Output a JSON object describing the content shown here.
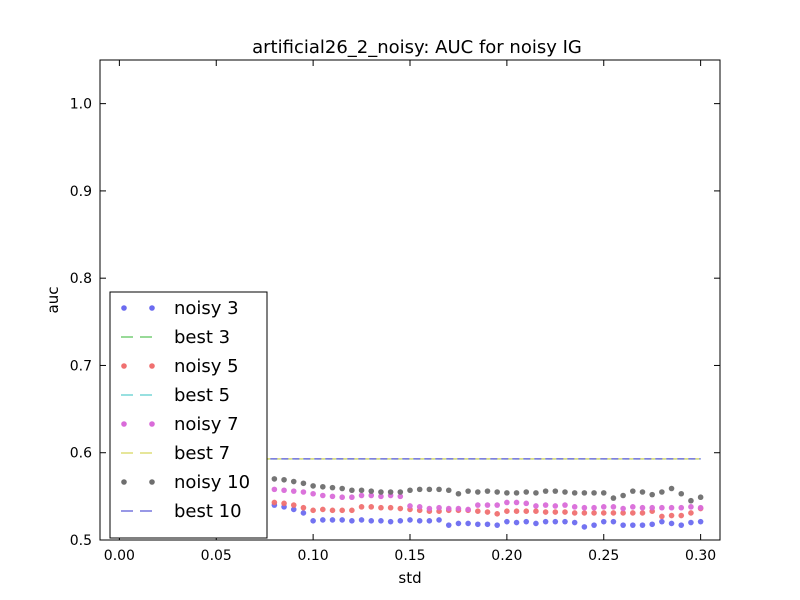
{
  "chart_data": {
    "type": "scatter",
    "title": "artificial26_2_noisy: AUC for noisy IG",
    "xlabel": "std",
    "ylabel": "auc",
    "xlim": [
      -0.01,
      0.31
    ],
    "ylim": [
      0.5,
      1.05
    ],
    "xticks": [
      0.0,
      0.05,
      0.1,
      0.15,
      0.2,
      0.25,
      0.3
    ],
    "xtick_labels": [
      "0.00",
      "0.05",
      "0.10",
      "0.15",
      "0.20",
      "0.25",
      "0.30"
    ],
    "yticks": [
      0.5,
      0.6,
      0.7,
      0.8,
      0.9,
      1.0
    ],
    "ytick_labels": [
      "0.5",
      "0.6",
      "0.7",
      "0.8",
      "0.9",
      "1.0"
    ],
    "grid": false,
    "legend_position": "lower-left",
    "x": [
      0.0,
      0.005,
      0.01,
      0.015,
      0.02,
      0.025,
      0.03,
      0.035,
      0.04,
      0.045,
      0.05,
      0.055,
      0.06,
      0.065,
      0.07,
      0.075,
      0.08,
      0.085,
      0.09,
      0.095,
      0.1,
      0.105,
      0.11,
      0.115,
      0.12,
      0.125,
      0.13,
      0.135,
      0.14,
      0.145,
      0.15,
      0.155,
      0.16,
      0.165,
      0.17,
      0.175,
      0.18,
      0.185,
      0.19,
      0.195,
      0.2,
      0.205,
      0.21,
      0.215,
      0.22,
      0.225,
      0.23,
      0.235,
      0.24,
      0.245,
      0.25,
      0.255,
      0.26,
      0.265,
      0.27,
      0.275,
      0.28,
      0.285,
      0.29,
      0.295,
      0.3
    ],
    "series": [
      {
        "name": "noisy 3",
        "style": "dots",
        "color": "#6b6bf0",
        "values": [
          0.555,
          0.555,
          0.554,
          0.553,
          0.552,
          0.551,
          0.55,
          0.549,
          0.548,
          0.547,
          0.546,
          0.545,
          0.544,
          0.543,
          0.542,
          0.541,
          0.54,
          0.538,
          0.535,
          0.531,
          0.522,
          0.523,
          0.523,
          0.523,
          0.522,
          0.523,
          0.522,
          0.522,
          0.521,
          0.522,
          0.523,
          0.522,
          0.522,
          0.523,
          0.517,
          0.519,
          0.519,
          0.518,
          0.518,
          0.517,
          0.521,
          0.52,
          0.521,
          0.519,
          0.521,
          0.521,
          0.521,
          0.52,
          0.515,
          0.517,
          0.521,
          0.521,
          0.517,
          0.517,
          0.517,
          0.518,
          0.521,
          0.519,
          0.517,
          0.52,
          0.521
        ]
      },
      {
        "name": "best 3",
        "style": "dashed",
        "color": "#7fd17f",
        "values": [
          0.593,
          0.593,
          0.593,
          0.593,
          0.593,
          0.593,
          0.593,
          0.593,
          0.593,
          0.593,
          0.593,
          0.593,
          0.593,
          0.593,
          0.593,
          0.593,
          0.593,
          0.593,
          0.593,
          0.593,
          0.593,
          0.593,
          0.593,
          0.593,
          0.593,
          0.593,
          0.593,
          0.593,
          0.593,
          0.593,
          0.593,
          0.593,
          0.593,
          0.593,
          0.593,
          0.593,
          0.593,
          0.593,
          0.593,
          0.593,
          0.593,
          0.593,
          0.593,
          0.593,
          0.593,
          0.593,
          0.593,
          0.593,
          0.593,
          0.593,
          0.593,
          0.593,
          0.593,
          0.593,
          0.593,
          0.593,
          0.593,
          0.593,
          0.593,
          0.593,
          0.593
        ]
      },
      {
        "name": "noisy 5",
        "style": "dots",
        "color": "#f07070",
        "values": [
          0.556,
          0.556,
          0.555,
          0.554,
          0.553,
          0.552,
          0.551,
          0.55,
          0.549,
          0.548,
          0.547,
          0.547,
          0.546,
          0.545,
          0.545,
          0.544,
          0.543,
          0.542,
          0.54,
          0.537,
          0.534,
          0.535,
          0.534,
          0.534,
          0.534,
          0.538,
          0.538,
          0.537,
          0.537,
          0.536,
          0.535,
          0.534,
          0.533,
          0.533,
          0.534,
          0.534,
          0.534,
          0.533,
          0.532,
          0.53,
          0.533,
          0.533,
          0.533,
          0.533,
          0.532,
          0.532,
          0.532,
          0.531,
          0.531,
          0.531,
          0.531,
          0.531,
          0.531,
          0.531,
          0.531,
          0.533,
          0.527,
          0.528,
          0.528,
          0.531,
          0.536
        ]
      },
      {
        "name": "best 5",
        "style": "dashed",
        "color": "#7fd8d8",
        "values": [
          0.593,
          0.593,
          0.593,
          0.593,
          0.593,
          0.593,
          0.593,
          0.593,
          0.593,
          0.593,
          0.593,
          0.593,
          0.593,
          0.593,
          0.593,
          0.593,
          0.593,
          0.593,
          0.593,
          0.593,
          0.593,
          0.593,
          0.593,
          0.593,
          0.593,
          0.593,
          0.593,
          0.593,
          0.593,
          0.593,
          0.593,
          0.593,
          0.593,
          0.593,
          0.593,
          0.593,
          0.593,
          0.593,
          0.593,
          0.593,
          0.593,
          0.593,
          0.593,
          0.593,
          0.593,
          0.593,
          0.593,
          0.593,
          0.593,
          0.593,
          0.593,
          0.593,
          0.593,
          0.593,
          0.593,
          0.593,
          0.593,
          0.593,
          0.593,
          0.593,
          0.593
        ]
      },
      {
        "name": "noisy 7",
        "style": "dots",
        "color": "#d96bd9",
        "values": [
          0.566,
          0.566,
          0.565,
          0.565,
          0.564,
          0.564,
          0.563,
          0.563,
          0.562,
          0.562,
          0.561,
          0.561,
          0.56,
          0.56,
          0.559,
          0.559,
          0.558,
          0.557,
          0.556,
          0.555,
          0.553,
          0.551,
          0.55,
          0.549,
          0.549,
          0.551,
          0.551,
          0.55,
          0.551,
          0.55,
          0.539,
          0.538,
          0.536,
          0.537,
          0.536,
          0.536,
          0.535,
          0.54,
          0.54,
          0.54,
          0.543,
          0.543,
          0.542,
          0.539,
          0.54,
          0.539,
          0.54,
          0.538,
          0.537,
          0.537,
          0.538,
          0.538,
          0.536,
          0.538,
          0.537,
          0.537,
          0.537,
          0.537,
          0.537,
          0.538,
          0.537
        ]
      },
      {
        "name": "best 7",
        "style": "dashed",
        "color": "#e0e080",
        "values": [
          0.593,
          0.593,
          0.593,
          0.593,
          0.593,
          0.593,
          0.593,
          0.593,
          0.593,
          0.593,
          0.593,
          0.593,
          0.593,
          0.593,
          0.593,
          0.593,
          0.593,
          0.593,
          0.593,
          0.593,
          0.593,
          0.593,
          0.593,
          0.593,
          0.593,
          0.593,
          0.593,
          0.593,
          0.593,
          0.593,
          0.593,
          0.593,
          0.593,
          0.593,
          0.593,
          0.593,
          0.593,
          0.593,
          0.593,
          0.593,
          0.593,
          0.593,
          0.593,
          0.593,
          0.593,
          0.593,
          0.593,
          0.593,
          0.593,
          0.593,
          0.593,
          0.593,
          0.593,
          0.593,
          0.593,
          0.593,
          0.593,
          0.593,
          0.593,
          0.593,
          0.593
        ]
      },
      {
        "name": "noisy 10",
        "style": "dots",
        "color": "#6e6e6e",
        "values": [
          0.578,
          0.578,
          0.577,
          0.577,
          0.576,
          0.576,
          0.575,
          0.575,
          0.574,
          0.574,
          0.573,
          0.573,
          0.572,
          0.572,
          0.571,
          0.571,
          0.57,
          0.569,
          0.567,
          0.565,
          0.562,
          0.561,
          0.56,
          0.559,
          0.557,
          0.557,
          0.556,
          0.555,
          0.555,
          0.555,
          0.557,
          0.558,
          0.558,
          0.558,
          0.557,
          0.553,
          0.556,
          0.555,
          0.556,
          0.555,
          0.554,
          0.554,
          0.555,
          0.554,
          0.556,
          0.556,
          0.555,
          0.554,
          0.554,
          0.554,
          0.554,
          0.548,
          0.551,
          0.556,
          0.555,
          0.552,
          0.555,
          0.559,
          0.553,
          0.545,
          0.549
        ]
      },
      {
        "name": "best 10",
        "style": "dashed",
        "color": "#7f7fe0",
        "values": [
          0.593,
          0.593,
          0.593,
          0.593,
          0.593,
          0.593,
          0.593,
          0.593,
          0.593,
          0.593,
          0.593,
          0.593,
          0.593,
          0.593,
          0.593,
          0.593,
          0.593,
          0.593,
          0.593,
          0.593,
          0.593,
          0.593,
          0.593,
          0.593,
          0.593,
          0.593,
          0.593,
          0.593,
          0.593,
          0.593,
          0.593,
          0.593,
          0.593,
          0.593,
          0.593,
          0.593,
          0.593,
          0.593,
          0.593,
          0.593,
          0.593,
          0.593,
          0.593,
          0.593,
          0.593,
          0.593,
          0.593,
          0.593,
          0.593,
          0.593,
          0.593,
          0.593,
          0.593,
          0.593,
          0.593,
          0.593,
          0.593,
          0.593,
          0.593,
          0.593,
          0.593
        ]
      }
    ]
  }
}
